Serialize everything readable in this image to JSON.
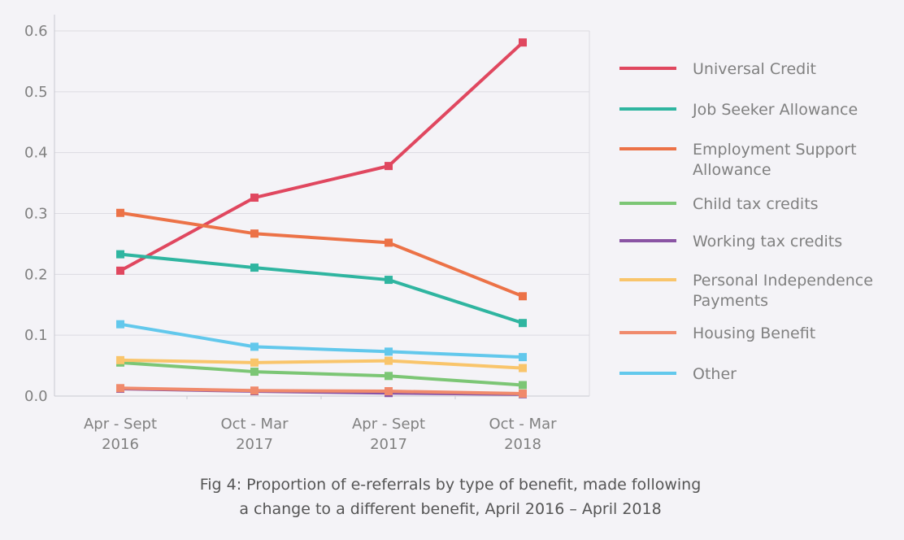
{
  "chart_data": {
    "type": "line",
    "title": "",
    "xlabel": "",
    "ylabel": "",
    "ylim": [
      0,
      0.6
    ],
    "yticks": [
      "0.0",
      "0.1",
      "0.2",
      "0.3",
      "0.4",
      "0.5",
      "0.6"
    ],
    "categories": [
      [
        "Apr - Sept",
        "2016"
      ],
      [
        "Oct - Mar",
        "2017"
      ],
      [
        "Apr - Sept",
        "2017"
      ],
      [
        "Oct - Mar",
        "2018"
      ]
    ],
    "grid": true,
    "legend_position": "right",
    "series": [
      {
        "name": [
          "Universal Credit"
        ],
        "color": "#e0475f",
        "values": [
          0.206,
          0.326,
          0.378,
          0.581
        ]
      },
      {
        "name": [
          "Job Seeker Allowance"
        ],
        "color": "#2fb5a0",
        "values": [
          0.233,
          0.211,
          0.191,
          0.12
        ]
      },
      {
        "name": [
          "Employment Support",
          "Allowance"
        ],
        "color": "#ec7247",
        "values": [
          0.301,
          0.267,
          0.252,
          0.164
        ]
      },
      {
        "name": [
          "Child tax credits"
        ],
        "color": "#7cc675",
        "values": [
          0.055,
          0.04,
          0.033,
          0.018
        ]
      },
      {
        "name": [
          "Working tax credits"
        ],
        "color": "#8a54a4",
        "values": [
          0.012,
          0.008,
          0.005,
          0.003
        ]
      },
      {
        "name": [
          "Personal Independence",
          "Payments"
        ],
        "color": "#f9c56b",
        "values": [
          0.059,
          0.055,
          0.058,
          0.046
        ]
      },
      {
        "name": [
          "Housing Benefit"
        ],
        "color": "#f08a6c",
        "values": [
          0.013,
          0.009,
          0.008,
          0.004
        ]
      },
      {
        "name": [
          "Other"
        ],
        "color": "#62c8ec",
        "values": [
          0.118,
          0.081,
          0.073,
          0.064
        ]
      }
    ],
    "caption": [
      "Fig 4: Proportion of e-referrals by type of benefit, made following",
      "a change to a different benefit, April 2016 – April 2018"
    ]
  }
}
